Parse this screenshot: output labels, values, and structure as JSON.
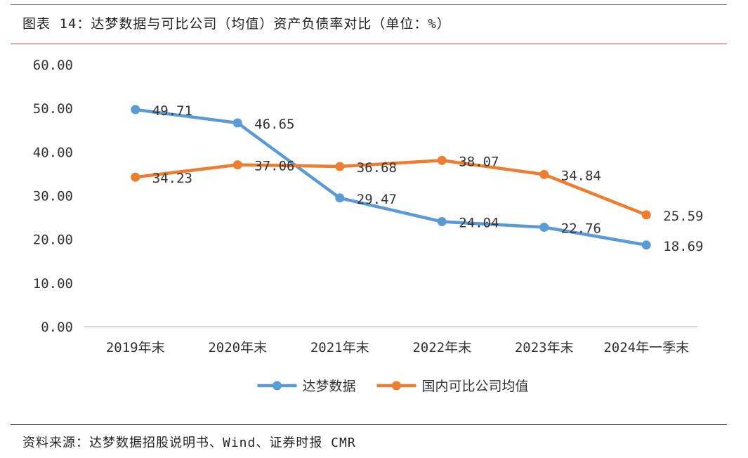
{
  "header": {
    "title": "图表 14：达梦数据与可比公司（均值）资产负债率对比（单位：%）"
  },
  "footer": {
    "source": "资料来源：达梦数据招股说明书、Wind、证券时报 CMR"
  },
  "colors": {
    "series_blue": "#5b9bd5",
    "series_orange": "#ed7d31",
    "header_rule": "#c0504d",
    "axis": "#bfbfbf"
  },
  "chart_data": {
    "type": "line",
    "categories": [
      "2019年末",
      "2020年末",
      "2021年末",
      "2022年末",
      "2023年末",
      "2024年一季末"
    ],
    "series": [
      {
        "name": "达梦数据",
        "color": "#5b9bd5",
        "values": [
          49.71,
          46.65,
          29.47,
          24.04,
          22.76,
          18.69
        ]
      },
      {
        "name": "国内可比公司均值",
        "color": "#ed7d31",
        "values": [
          34.23,
          37.06,
          36.68,
          38.07,
          34.84,
          25.59
        ]
      }
    ],
    "y_ticks": [
      "0.00",
      "10.00",
      "20.00",
      "30.00",
      "40.00",
      "50.00",
      "60.00"
    ],
    "ylim": [
      0,
      60
    ],
    "grid": false,
    "legend": "bottom",
    "data_labels": true
  }
}
